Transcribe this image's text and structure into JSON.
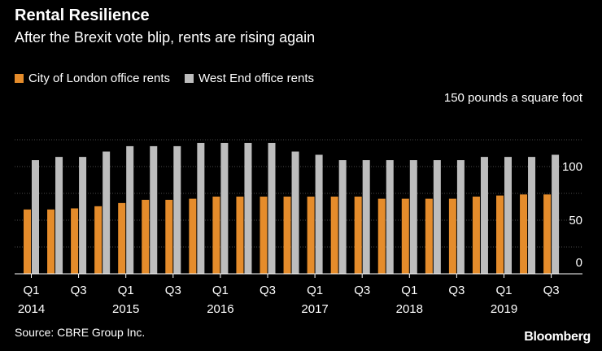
{
  "header": {
    "title": "Rental Resilience",
    "subtitle": "After the Brexit vote blip, rents are rising again"
  },
  "colors": {
    "background": "#000000",
    "city": "#E58C2B",
    "westend": "#BDBDBD",
    "grid": "#4A4A4A",
    "text": "#FFFFFF"
  },
  "footer": {
    "source": "Source: CBRE Group Inc.",
    "brand": "Bloomberg"
  },
  "chart_data": {
    "type": "bar",
    "title": "Rental Resilience",
    "subtitle": "After the Brexit vote blip, rents are rising again",
    "unit_label": "150 pounds a square foot",
    "ylim": [
      0,
      150
    ],
    "yticks": [
      0,
      50,
      100
    ],
    "grid": true,
    "legend_position": "top-left",
    "categories": [
      "Q1 2014",
      "Q2 2014",
      "Q3 2014",
      "Q4 2014",
      "Q1 2015",
      "Q2 2015",
      "Q3 2015",
      "Q4 2015",
      "Q1 2016",
      "Q2 2016",
      "Q3 2016",
      "Q4 2016",
      "Q1 2017",
      "Q2 2017",
      "Q3 2017",
      "Q4 2017",
      "Q1 2018",
      "Q2 2018",
      "Q3 2018",
      "Q4 2018",
      "Q1 2019",
      "Q2 2019",
      "Q3 2019"
    ],
    "tick_labels": [
      {
        "index": 0,
        "quarter": "Q1",
        "year": "2014"
      },
      {
        "index": 2,
        "quarter": "Q3",
        "year": ""
      },
      {
        "index": 4,
        "quarter": "Q1",
        "year": "2015"
      },
      {
        "index": 6,
        "quarter": "Q3",
        "year": ""
      },
      {
        "index": 8,
        "quarter": "Q1",
        "year": "2016"
      },
      {
        "index": 10,
        "quarter": "Q3",
        "year": ""
      },
      {
        "index": 12,
        "quarter": "Q1",
        "year": "2017"
      },
      {
        "index": 14,
        "quarter": "Q3",
        "year": ""
      },
      {
        "index": 16,
        "quarter": "Q1",
        "year": "2018"
      },
      {
        "index": 18,
        "quarter": "Q3",
        "year": ""
      },
      {
        "index": 20,
        "quarter": "Q1",
        "year": "2019"
      },
      {
        "index": 22,
        "quarter": "Q3",
        "year": ""
      }
    ],
    "series": [
      {
        "name": "City of London office rents",
        "color": "#E58C2B",
        "values": [
          60,
          60,
          61,
          63,
          66,
          69,
          69,
          70,
          72,
          72,
          72,
          72,
          72,
          72,
          72,
          70,
          70,
          70,
          70,
          72,
          73,
          74,
          74
        ]
      },
      {
        "name": "West End office rents",
        "color": "#BDBDBD",
        "values": [
          106,
          109,
          109,
          114,
          119,
          119,
          119,
          122,
          122,
          122,
          122,
          114,
          111,
          106,
          106,
          106,
          106,
          106,
          106,
          109,
          109,
          109,
          111
        ]
      }
    ]
  }
}
